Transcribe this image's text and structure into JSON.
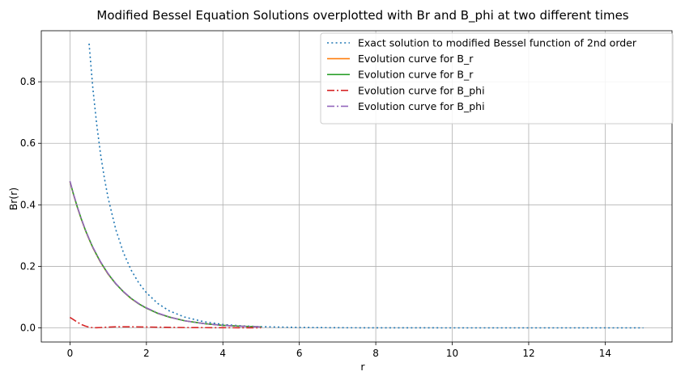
{
  "chart_data": {
    "type": "line",
    "title": "Modified Bessel Equation Solutions overplotted with Br and B_phi at two different times",
    "xlabel": "r",
    "ylabel": "Br(r)",
    "xlim": [
      -0.75,
      15.75
    ],
    "ylim": [
      -0.046,
      0.966
    ],
    "xticks": [
      0,
      2,
      4,
      6,
      8,
      10,
      12,
      14
    ],
    "yticks": [
      0.0,
      0.2,
      0.4,
      0.6,
      0.8
    ],
    "ytick_labels": [
      "0.0",
      "0.2",
      "0.4",
      "0.6",
      "0.8"
    ],
    "grid": true,
    "legend_position": "top-right",
    "series": [
      {
        "name": "Exact solution to modified Bessel function of 2nd order",
        "color": "#1f77b4",
        "style": "dotted",
        "x": [
          0.5,
          0.6,
          0.7,
          0.8,
          0.9,
          1.0,
          1.2,
          1.4,
          1.6,
          1.8,
          2.0,
          2.3,
          2.6,
          3.0,
          3.5,
          4.0,
          4.5,
          5.0,
          6.0,
          7.0,
          8.0,
          10.0,
          12.0,
          15.0
        ],
        "y": [
          0.924,
          0.777,
          0.661,
          0.565,
          0.487,
          0.421,
          0.319,
          0.244,
          0.188,
          0.146,
          0.114,
          0.079,
          0.055,
          0.035,
          0.02,
          0.011,
          0.0064,
          0.0037,
          0.0013,
          0.0004,
          0.0002,
          0.0,
          0.0,
          0.0
        ]
      },
      {
        "name": "Evolution curve for B_r",
        "color": "#ff7f0e",
        "style": "solid",
        "x": [
          0.0,
          0.1,
          0.2,
          0.3,
          0.4,
          0.5,
          0.6,
          0.8,
          1.0,
          1.2,
          1.4,
          1.6,
          1.8,
          2.0,
          2.3,
          2.6,
          3.0,
          3.5,
          4.0,
          4.5,
          5.0
        ],
        "y": [
          0.475,
          0.43,
          0.389,
          0.352,
          0.318,
          0.288,
          0.26,
          0.213,
          0.174,
          0.143,
          0.117,
          0.095,
          0.078,
          0.064,
          0.047,
          0.035,
          0.023,
          0.014,
          0.008,
          0.005,
          0.003
        ]
      },
      {
        "name": "Evolution curve for B_r",
        "color": "#2ca02c",
        "style": "solid",
        "x": [
          0.0,
          0.1,
          0.2,
          0.3,
          0.4,
          0.5,
          0.6,
          0.8,
          1.0,
          1.2,
          1.4,
          1.6,
          1.8,
          2.0,
          2.3,
          2.6,
          3.0,
          3.5,
          4.0,
          4.5,
          5.0
        ],
        "y": [
          0.476,
          0.431,
          0.39,
          0.353,
          0.319,
          0.289,
          0.261,
          0.214,
          0.175,
          0.143,
          0.117,
          0.096,
          0.078,
          0.064,
          0.047,
          0.035,
          0.023,
          0.014,
          0.008,
          0.005,
          0.003
        ]
      },
      {
        "name": "Evolution curve for B_phi",
        "color": "#d62728",
        "style": "dashdot",
        "x": [
          0.0,
          0.1,
          0.2,
          0.3,
          0.4,
          0.5,
          0.6,
          0.7,
          0.8,
          1.0,
          1.2,
          1.5,
          2.0,
          2.5,
          3.0,
          4.0,
          5.0
        ],
        "y": [
          0.034,
          0.026,
          0.018,
          0.011,
          0.006,
          0.002,
          0.0005,
          0.0005,
          0.001,
          0.0025,
          0.0035,
          0.0035,
          0.0028,
          0.0018,
          0.001,
          0.0004,
          0.0001
        ]
      },
      {
        "name": "Evolution curve for B_phi",
        "color": "#9467bd",
        "style": "dashdot",
        "x": [
          0.0,
          0.1,
          0.2,
          0.3,
          0.4,
          0.5,
          0.6,
          0.8,
          1.0,
          1.2,
          1.4,
          1.6,
          1.8,
          2.0,
          2.3,
          2.6,
          3.0,
          3.5,
          4.0,
          4.5,
          5.0
        ],
        "y": [
          0.477,
          0.432,
          0.391,
          0.354,
          0.32,
          0.29,
          0.262,
          0.215,
          0.176,
          0.144,
          0.118,
          0.096,
          0.079,
          0.065,
          0.048,
          0.035,
          0.023,
          0.014,
          0.008,
          0.005,
          0.003
        ]
      }
    ]
  }
}
